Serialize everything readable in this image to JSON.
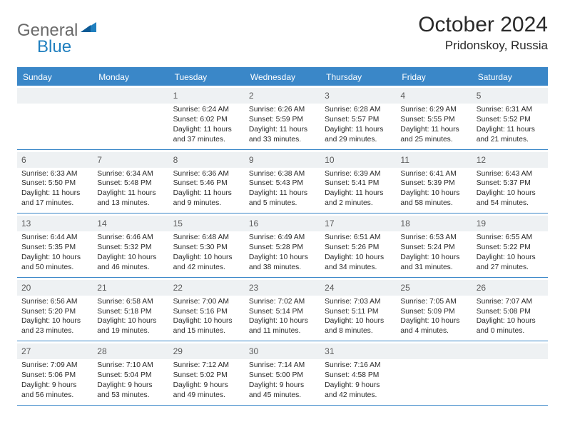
{
  "logo": {
    "text1": "General",
    "text2": "Blue"
  },
  "title": "October 2024",
  "location": "Pridonskoy, Russia",
  "colors": {
    "accent": "#3a87c8",
    "daynum_bg": "#eef1f3"
  },
  "dow": [
    "Sunday",
    "Monday",
    "Tuesday",
    "Wednesday",
    "Thursday",
    "Friday",
    "Saturday"
  ],
  "weeks": [
    [
      {
        "n": "",
        "sr": "",
        "ss": "",
        "dl": "",
        "empty": true
      },
      {
        "n": "",
        "sr": "",
        "ss": "",
        "dl": "",
        "empty": true
      },
      {
        "n": "1",
        "sr": "Sunrise: 6:24 AM",
        "ss": "Sunset: 6:02 PM",
        "dl": "Daylight: 11 hours and 37 minutes."
      },
      {
        "n": "2",
        "sr": "Sunrise: 6:26 AM",
        "ss": "Sunset: 5:59 PM",
        "dl": "Daylight: 11 hours and 33 minutes."
      },
      {
        "n": "3",
        "sr": "Sunrise: 6:28 AM",
        "ss": "Sunset: 5:57 PM",
        "dl": "Daylight: 11 hours and 29 minutes."
      },
      {
        "n": "4",
        "sr": "Sunrise: 6:29 AM",
        "ss": "Sunset: 5:55 PM",
        "dl": "Daylight: 11 hours and 25 minutes."
      },
      {
        "n": "5",
        "sr": "Sunrise: 6:31 AM",
        "ss": "Sunset: 5:52 PM",
        "dl": "Daylight: 11 hours and 21 minutes."
      }
    ],
    [
      {
        "n": "6",
        "sr": "Sunrise: 6:33 AM",
        "ss": "Sunset: 5:50 PM",
        "dl": "Daylight: 11 hours and 17 minutes."
      },
      {
        "n": "7",
        "sr": "Sunrise: 6:34 AM",
        "ss": "Sunset: 5:48 PM",
        "dl": "Daylight: 11 hours and 13 minutes."
      },
      {
        "n": "8",
        "sr": "Sunrise: 6:36 AM",
        "ss": "Sunset: 5:46 PM",
        "dl": "Daylight: 11 hours and 9 minutes."
      },
      {
        "n": "9",
        "sr": "Sunrise: 6:38 AM",
        "ss": "Sunset: 5:43 PM",
        "dl": "Daylight: 11 hours and 5 minutes."
      },
      {
        "n": "10",
        "sr": "Sunrise: 6:39 AM",
        "ss": "Sunset: 5:41 PM",
        "dl": "Daylight: 11 hours and 2 minutes."
      },
      {
        "n": "11",
        "sr": "Sunrise: 6:41 AM",
        "ss": "Sunset: 5:39 PM",
        "dl": "Daylight: 10 hours and 58 minutes."
      },
      {
        "n": "12",
        "sr": "Sunrise: 6:43 AM",
        "ss": "Sunset: 5:37 PM",
        "dl": "Daylight: 10 hours and 54 minutes."
      }
    ],
    [
      {
        "n": "13",
        "sr": "Sunrise: 6:44 AM",
        "ss": "Sunset: 5:35 PM",
        "dl": "Daylight: 10 hours and 50 minutes."
      },
      {
        "n": "14",
        "sr": "Sunrise: 6:46 AM",
        "ss": "Sunset: 5:32 PM",
        "dl": "Daylight: 10 hours and 46 minutes."
      },
      {
        "n": "15",
        "sr": "Sunrise: 6:48 AM",
        "ss": "Sunset: 5:30 PM",
        "dl": "Daylight: 10 hours and 42 minutes."
      },
      {
        "n": "16",
        "sr": "Sunrise: 6:49 AM",
        "ss": "Sunset: 5:28 PM",
        "dl": "Daylight: 10 hours and 38 minutes."
      },
      {
        "n": "17",
        "sr": "Sunrise: 6:51 AM",
        "ss": "Sunset: 5:26 PM",
        "dl": "Daylight: 10 hours and 34 minutes."
      },
      {
        "n": "18",
        "sr": "Sunrise: 6:53 AM",
        "ss": "Sunset: 5:24 PM",
        "dl": "Daylight: 10 hours and 31 minutes."
      },
      {
        "n": "19",
        "sr": "Sunrise: 6:55 AM",
        "ss": "Sunset: 5:22 PM",
        "dl": "Daylight: 10 hours and 27 minutes."
      }
    ],
    [
      {
        "n": "20",
        "sr": "Sunrise: 6:56 AM",
        "ss": "Sunset: 5:20 PM",
        "dl": "Daylight: 10 hours and 23 minutes."
      },
      {
        "n": "21",
        "sr": "Sunrise: 6:58 AM",
        "ss": "Sunset: 5:18 PM",
        "dl": "Daylight: 10 hours and 19 minutes."
      },
      {
        "n": "22",
        "sr": "Sunrise: 7:00 AM",
        "ss": "Sunset: 5:16 PM",
        "dl": "Daylight: 10 hours and 15 minutes."
      },
      {
        "n": "23",
        "sr": "Sunrise: 7:02 AM",
        "ss": "Sunset: 5:14 PM",
        "dl": "Daylight: 10 hours and 11 minutes."
      },
      {
        "n": "24",
        "sr": "Sunrise: 7:03 AM",
        "ss": "Sunset: 5:11 PM",
        "dl": "Daylight: 10 hours and 8 minutes."
      },
      {
        "n": "25",
        "sr": "Sunrise: 7:05 AM",
        "ss": "Sunset: 5:09 PM",
        "dl": "Daylight: 10 hours and 4 minutes."
      },
      {
        "n": "26",
        "sr": "Sunrise: 7:07 AM",
        "ss": "Sunset: 5:08 PM",
        "dl": "Daylight: 10 hours and 0 minutes."
      }
    ],
    [
      {
        "n": "27",
        "sr": "Sunrise: 7:09 AM",
        "ss": "Sunset: 5:06 PM",
        "dl": "Daylight: 9 hours and 56 minutes."
      },
      {
        "n": "28",
        "sr": "Sunrise: 7:10 AM",
        "ss": "Sunset: 5:04 PM",
        "dl": "Daylight: 9 hours and 53 minutes."
      },
      {
        "n": "29",
        "sr": "Sunrise: 7:12 AM",
        "ss": "Sunset: 5:02 PM",
        "dl": "Daylight: 9 hours and 49 minutes."
      },
      {
        "n": "30",
        "sr": "Sunrise: 7:14 AM",
        "ss": "Sunset: 5:00 PM",
        "dl": "Daylight: 9 hours and 45 minutes."
      },
      {
        "n": "31",
        "sr": "Sunrise: 7:16 AM",
        "ss": "Sunset: 4:58 PM",
        "dl": "Daylight: 9 hours and 42 minutes."
      },
      {
        "n": "",
        "sr": "",
        "ss": "",
        "dl": "",
        "empty": true
      },
      {
        "n": "",
        "sr": "",
        "ss": "",
        "dl": "",
        "empty": true
      }
    ]
  ]
}
